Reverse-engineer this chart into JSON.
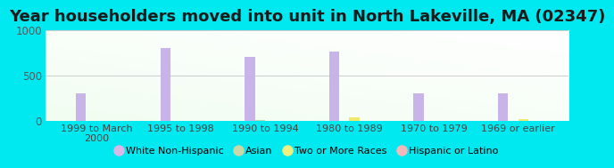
{
  "title": "Year householders moved into unit in North Lakeville, MA (02347)",
  "categories": [
    "1999 to March\n2000",
    "1995 to 1998",
    "1990 to 1994",
    "1980 to 1989",
    "1970 to 1979",
    "1969 or earlier"
  ],
  "series": {
    "White Non-Hispanic": [
      300,
      800,
      700,
      760,
      300,
      300
    ],
    "Asian": [
      0,
      0,
      8,
      0,
      0,
      0
    ],
    "Two or More Races": [
      0,
      0,
      0,
      38,
      0,
      18
    ],
    "Hispanic or Latino": [
      0,
      0,
      0,
      0,
      0,
      0
    ]
  },
  "colors": {
    "White Non-Hispanic": "#c8b4e8",
    "Asian": "#b8d8a8",
    "Two or More Races": "#f0e868",
    "Hispanic or Latino": "#f4b8b8"
  },
  "legend_colors": {
    "White Non-Hispanic": "#d8b8e8",
    "Asian": "#c8d8a8",
    "Two or More Races": "#f0f080",
    "Hispanic or Latino": "#f4b8b8"
  },
  "ylim": [
    0,
    1000
  ],
  "yticks": [
    0,
    500,
    1000
  ],
  "background_outer": "#00e8f0",
  "grid_color": "#cccccc",
  "title_fontsize": 13,
  "bar_width": 0.12
}
